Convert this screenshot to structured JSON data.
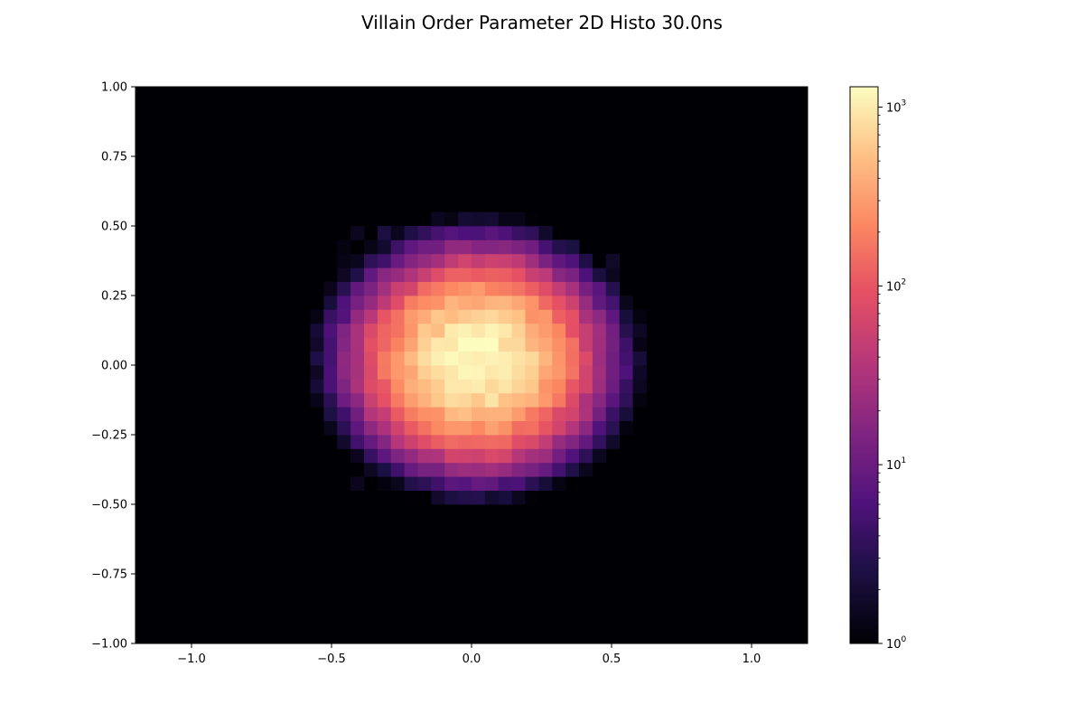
{
  "chart_data": {
    "type": "heatmap",
    "title": "Villain Order Parameter 2D Histo 30.0ns",
    "xlabel": "",
    "ylabel": "",
    "xlim": [
      -1.2,
      1.2
    ],
    "ylim": [
      -1.0,
      1.0
    ],
    "x_ticks": [
      -1.0,
      -0.5,
      0.0,
      0.5,
      1.0
    ],
    "x_tick_labels": [
      "−1.0",
      "−0.5",
      "0.0",
      "0.5",
      "1.0"
    ],
    "y_ticks": [
      -1.0,
      -0.75,
      -0.5,
      -0.25,
      0.0,
      0.25,
      0.5,
      0.75,
      1.0
    ],
    "y_tick_labels": [
      "−1.00",
      "−0.75",
      "−0.50",
      "−0.25",
      "0.00",
      "0.25",
      "0.50",
      "0.75",
      "1.00"
    ],
    "grid": false,
    "colormap": "magma",
    "color_scale": "log",
    "colorbar": {
      "vmin": 1,
      "vmax": 1300,
      "ticks": [
        1,
        10,
        100,
        1000
      ],
      "tick_labels": [
        {
          "base": "10",
          "exp": "0"
        },
        {
          "base": "10",
          "exp": "1"
        },
        {
          "base": "10",
          "exp": "2"
        },
        {
          "base": "10",
          "exp": "3"
        }
      ]
    },
    "bins": {
      "x_edges_range": [
        -1.2,
        1.2
      ],
      "y_edges_range": [
        -1.0,
        1.0
      ],
      "nx": 50,
      "ny": 40,
      "center": [
        0.02,
        0.02
      ],
      "peak_count": 1300,
      "sigma_x": 0.16,
      "sigma_y": 0.14,
      "support_x": [
        -0.65,
        0.65
      ],
      "support_y": [
        -0.65,
        0.62
      ]
    },
    "colors": {
      "background": "#000004",
      "frame": "#000000"
    }
  }
}
